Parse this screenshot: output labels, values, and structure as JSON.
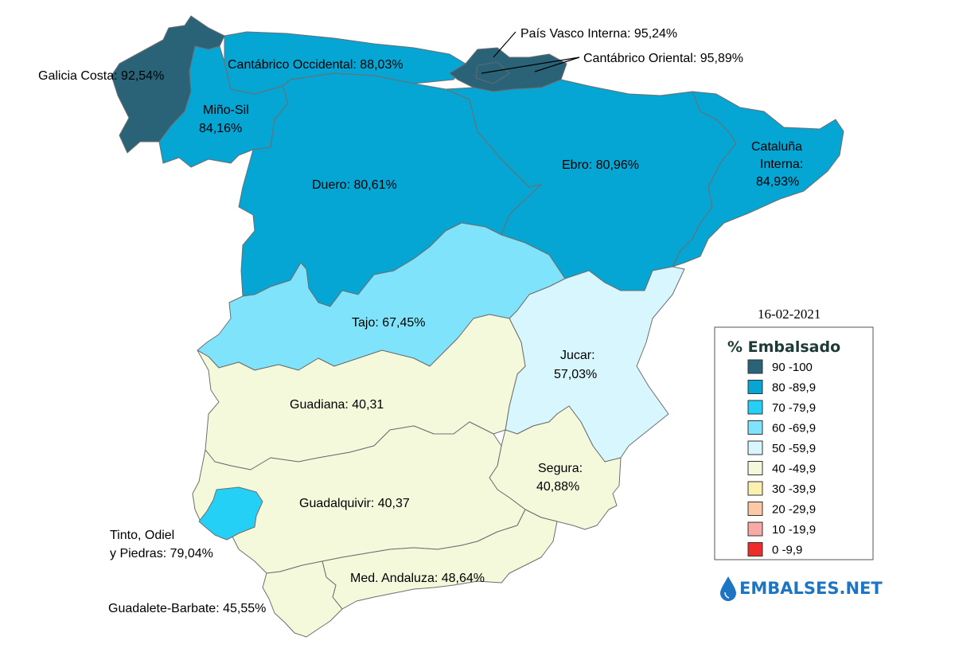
{
  "date": "16-02-2021",
  "legend": {
    "title": "% Embalsado",
    "items": [
      {
        "label": "90 -100",
        "color": "#2a6378"
      },
      {
        "label": "80 -89,9",
        "color": "#05a5d4"
      },
      {
        "label": "70 -79,9",
        "color": "#25d0f7"
      },
      {
        "label": "60 -69,9",
        "color": "#7fe4fb"
      },
      {
        "label": "50 -59,9",
        "color": "#d8f6fd"
      },
      {
        "label": "40 -49,9",
        "color": "#f5f9dc"
      },
      {
        "label": "30 -39,9",
        "color": "#fcf0b1"
      },
      {
        "label": "20 -29,9",
        "color": "#fbc9a3"
      },
      {
        "label": "10 -19,9",
        "color": "#f7aaa6"
      },
      {
        "label": "0 -9,9",
        "color": "#f02b2b"
      }
    ]
  },
  "brand": "EMBALSES.NET",
  "regions": {
    "galicia": {
      "label": "Galicia Costa: 92,54%",
      "value": 92.54
    },
    "cantabrico_occ": {
      "label": "Cantábrico Occidental: 88,03%",
      "value": 88.03
    },
    "pais_vasco": {
      "label": "País Vasco Interna: 95,24%",
      "value": 95.24
    },
    "cantabrico_ori": {
      "label": "Cantábrico Oriental: 95,89%",
      "value": 95.89
    },
    "mino_sil": {
      "line1": "Miño-Sil",
      "line2": "84,16%",
      "value": 84.16
    },
    "duero": {
      "label": "Duero: 80,61%",
      "value": 80.61
    },
    "ebro": {
      "label": "Ebro: 80,96%",
      "value": 80.96
    },
    "cataluna": {
      "line1": "Cataluña",
      "line2": "Interna:",
      "line3": "84,93%",
      "value": 84.93
    },
    "tajo": {
      "label": "Tajo: 67,45%",
      "value": 67.45
    },
    "jucar": {
      "line1": "Jucar:",
      "line2": "57,03%",
      "value": 57.03
    },
    "guadiana": {
      "label": "Guadiana: 40,31",
      "value": 40.31
    },
    "segura": {
      "line1": "Segura:",
      "line2": "40,88%",
      "value": 40.88
    },
    "guadalquivir": {
      "label": "Guadalquivir: 40,37",
      "value": 40.37
    },
    "tinto": {
      "line1": "Tinto, Odiel",
      "line2": "y Piedras: 79,04%",
      "value": 79.04
    },
    "med_andaluza": {
      "label": "Med. Andaluza: 48,64%",
      "value": 48.64
    },
    "guadalete": {
      "label": "Guadalete-Barbate: 45,55%",
      "value": 45.55
    }
  }
}
